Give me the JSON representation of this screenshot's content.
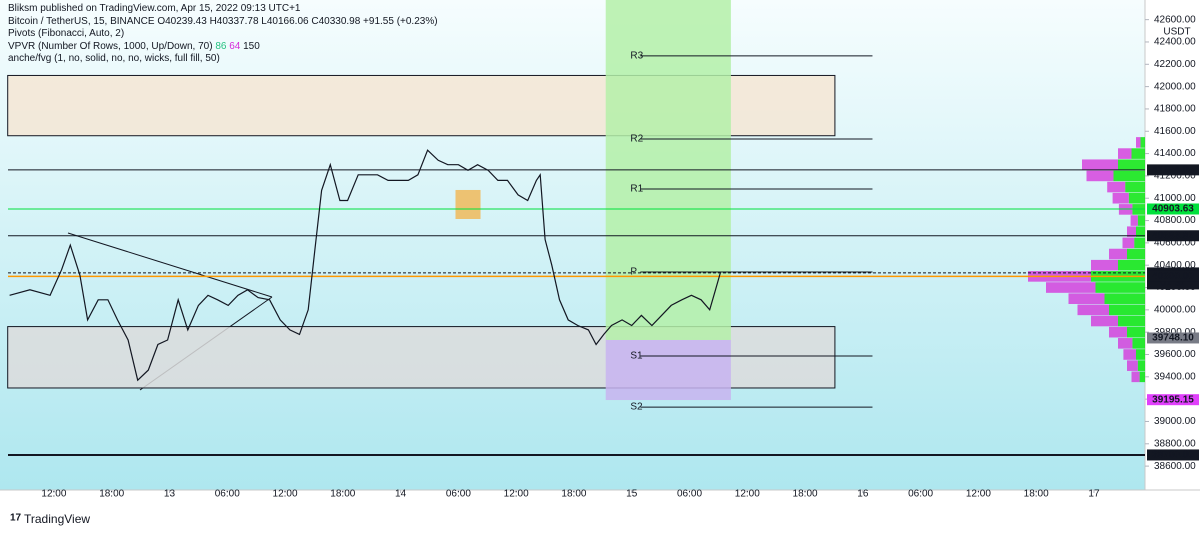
{
  "header": {
    "publisher": "Bliksm published on TradingView.com, Apr 15, 2022 09:13 UTC+1",
    "lines": [
      "Bitcoin / TetherUS, 15, BINANCE  O40239.43  H40337.78  L40166.06  C40330.98  +91.55 (+0.23%)",
      "Pivots (Fibonacci, Auto, 2)",
      "VPVR (Number Of Rows, 1000, Up/Down, 70)",
      "anche/fvg (1, no, solid, no, no, wicks, full fill, 50)"
    ],
    "vpvr_values": [
      {
        "text": "86",
        "color": "#26c281"
      },
      {
        "text": "64",
        "color": "#d62bd9"
      },
      {
        "text": "150",
        "color": "#131722"
      }
    ],
    "currency": "USDT",
    "brand": "TradingView"
  },
  "chart_data": {
    "type": "line",
    "color": "#131722",
    "x": [
      7.4,
      9.5,
      11.6,
      12.8,
      13.7,
      14.7,
      15.5,
      16.6,
      17.6,
      18.6,
      19.7,
      20.7,
      21.8,
      22.8,
      23.8,
      24.9,
      25.9,
      27.0,
      28.0,
      29.0,
      30.1,
      31.1,
      32.1,
      33.2,
      34.4,
      35.5,
      36.5,
      37.5,
      38.4,
      39.1,
      39.8,
      40.7,
      41.7,
      42.5,
      43.6,
      44.6,
      45.6,
      46.7,
      47.7,
      48.8,
      49.8,
      50.8,
      51.9,
      52.9,
      54.0,
      55.0,
      56.0,
      57.1,
      58.1,
      59.1,
      60.2,
      61.2,
      62.1,
      62.5,
      63.0,
      63.7,
      64.5,
      65.4,
      66.4,
      67.5,
      68.3,
      69.1,
      69.9,
      71.0,
      72.0,
      73.0,
      74.1,
      75.1,
      76.1,
      77.2,
      78.2,
      79.2,
      80.1,
      80.7,
      81.2
    ],
    "values": [
      40130,
      40180,
      40130,
      40360,
      40580,
      40310,
      39910,
      40090,
      40090,
      39910,
      39730,
      39370,
      39460,
      39690,
      39730,
      40090,
      39820,
      40040,
      40130,
      40090,
      40040,
      40130,
      40180,
      40110,
      40090,
      39910,
      39820,
      39780,
      40000,
      40540,
      41070,
      41300,
      40980,
      40980,
      41210,
      41210,
      41210,
      41160,
      41160,
      41160,
      41210,
      41430,
      41340,
      41300,
      41300,
      41250,
      41300,
      41250,
      41160,
      41160,
      41030,
      40980,
      41160,
      41210,
      40630,
      40400,
      40090,
      39910,
      39860,
      39820,
      39690,
      39780,
      39860,
      39910,
      39860,
      39950,
      39860,
      39950,
      40040,
      40090,
      40130,
      40090,
      40000,
      40180,
      40330
    ],
    "xlim": [
      6.4,
      125.3
    ],
    "xticks": [
      {
        "value": 12,
        "label": "12:00"
      },
      {
        "value": 18,
        "label": "18:00"
      },
      {
        "value": 24,
        "label": "13"
      },
      {
        "value": 30,
        "label": "06:00"
      },
      {
        "value": 36,
        "label": "12:00"
      },
      {
        "value": 42,
        "label": "18:00"
      },
      {
        "value": 48,
        "label": "14"
      },
      {
        "value": 54,
        "label": "06:00"
      },
      {
        "value": 60,
        "label": "12:00"
      },
      {
        "value": 66,
        "label": "18:00"
      },
      {
        "value": 72,
        "label": "15"
      },
      {
        "value": 78,
        "label": "06:00"
      },
      {
        "value": 84,
        "label": "12:00"
      },
      {
        "value": 90,
        "label": "18:00"
      },
      {
        "value": 96,
        "label": "16"
      },
      {
        "value": 102,
        "label": "06:00"
      },
      {
        "value": 108,
        "label": "12:00"
      },
      {
        "value": 114,
        "label": "18:00"
      },
      {
        "value": 120,
        "label": "17"
      }
    ],
    "ylim": [
      38386,
      42776
    ],
    "yticks": [
      {
        "value": 38600,
        "label": "38600.00"
      },
      {
        "value": 38800,
        "label": "38800.00"
      },
      {
        "value": 39000,
        "label": "39000.00"
      },
      {
        "value": 39200,
        "label": "39200.00"
      },
      {
        "value": 39400,
        "label": "39400.00"
      },
      {
        "value": 39600,
        "label": "39600.00"
      },
      {
        "value": 39800,
        "label": "39800.00"
      },
      {
        "value": 40000,
        "label": "40000.00"
      },
      {
        "value": 40200,
        "label": "40200.00"
      },
      {
        "value": 40400,
        "label": "40400.00"
      },
      {
        "value": 40600,
        "label": "40600.00"
      },
      {
        "value": 40800,
        "label": "40800.00"
      },
      {
        "value": 41000,
        "label": "41000.00"
      },
      {
        "value": 41200,
        "label": "41200.00"
      },
      {
        "value": 41400,
        "label": "41400.00"
      },
      {
        "value": 41600,
        "label": "41600.00"
      },
      {
        "value": 41800,
        "label": "41800.00"
      },
      {
        "value": 42000,
        "label": "42000.00"
      },
      {
        "value": 42200,
        "label": "42200.00"
      },
      {
        "value": 42400,
        "label": "42400.00"
      },
      {
        "value": 42600,
        "label": "42600.00"
      }
    ],
    "zones": [
      {
        "x": [
          7.2,
          93.1
        ],
        "y": [
          41560,
          42100
        ],
        "color": "#f5e6d3"
      },
      {
        "x": [
          7.2,
          93.1
        ],
        "y": [
          39300,
          39850
        ],
        "color": "#dcdcdc"
      },
      {
        "x": [
          53.7,
          56.3
        ],
        "y": [
          40814,
          41074
        ],
        "color": "#f0b95a"
      },
      {
        "x": [
          69.3,
          82.3
        ],
        "y": [
          39730,
          42776
        ],
        "color": "#b4f0a8"
      },
      {
        "x": [
          69.3,
          82.3
        ],
        "y": [
          39192,
          39730
        ],
        "color": "#c8b4f0"
      }
    ],
    "pivot_range": [
      72.9,
      97.0
    ],
    "pivots": [
      {
        "label": "R3",
        "value": 42275
      },
      {
        "label": "R2",
        "value": 41531
      },
      {
        "label": "R1",
        "value": 41083
      },
      {
        "label": "P",
        "value": 40339
      },
      {
        "label": "S1",
        "value": 39586
      },
      {
        "label": "S2",
        "value": 39129
      }
    ],
    "levels": [
      {
        "value": 41254.05,
        "label": "41254.05",
        "color": "#131722",
        "line": "solid"
      },
      {
        "value": 40903.63,
        "label": "40903.63",
        "color": "#00e13c",
        "line": "thin"
      },
      {
        "value": 40663.82,
        "label": "40663.82",
        "color": "#131722",
        "line": "solid"
      },
      {
        "value": 40330.98,
        "label": "40330.98",
        "color": "#131722",
        "line": "dashed",
        "countdown": "01:37"
      },
      {
        "value": 40300,
        "label": "40300.00",
        "color": "#131722",
        "line": "orange"
      },
      {
        "value": 39748.1,
        "label": "39748.10",
        "color": "#787b86",
        "line": "none"
      },
      {
        "value": 39195.15,
        "label": "39195.15",
        "color": "#e040fb",
        "line": "none"
      },
      {
        "value": 38700,
        "label": "38700.00",
        "color": "#131722",
        "line": "thick"
      }
    ],
    "volume_profile": {
      "levels": [
        41500,
        41400,
        41300,
        41200,
        41100,
        41000,
        40900,
        40800,
        40700,
        40600,
        40500,
        40400,
        40300,
        40200,
        40100,
        40000,
        39900,
        39800,
        39700,
        39600,
        39500,
        39400
      ],
      "up": [
        5,
        15,
        30,
        35,
        22,
        18,
        14,
        8,
        10,
        12,
        20,
        30,
        60,
        55,
        45,
        40,
        30,
        20,
        14,
        10,
        8,
        6
      ],
      "down": [
        5,
        15,
        40,
        30,
        20,
        18,
        15,
        8,
        10,
        13,
        20,
        30,
        70,
        55,
        40,
        35,
        30,
        20,
        16,
        14,
        12,
        9
      ]
    }
  }
}
